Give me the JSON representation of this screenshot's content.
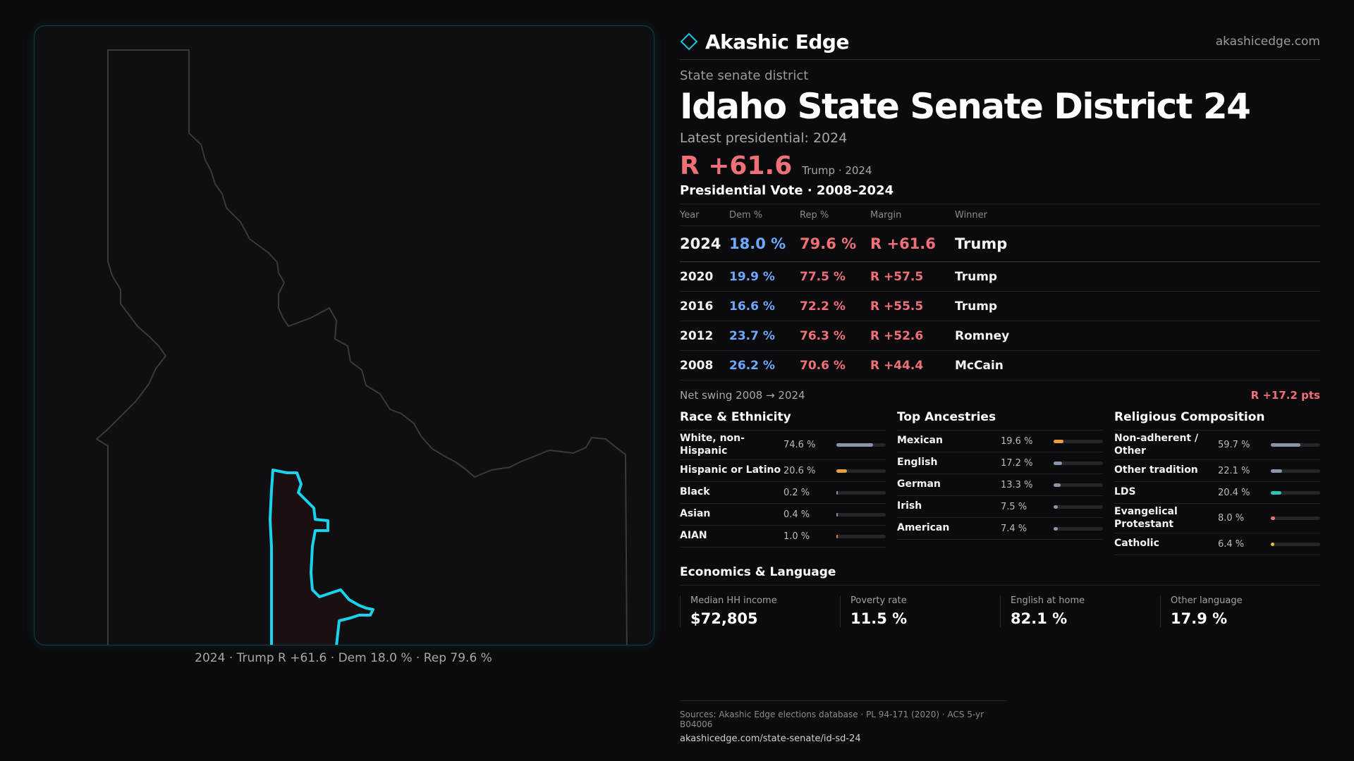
{
  "brand": {
    "name": "Akashic Edge",
    "url": "akashicedge.com",
    "logo_icon": "diamond-outline-icon"
  },
  "header": {
    "kicker": "State senate district",
    "title": "Idaho State Senate District 24",
    "latest_label": "Latest presidential: 2024",
    "margin": "R +61.6",
    "margin_note": "Trump · 2024"
  },
  "map": {
    "caption": "2024 · Trump R +61.6 · Dem 18.0 % · Rep 79.6 %",
    "accent": "#19d3ee"
  },
  "vote_table": {
    "title": "Presidential Vote · 2008–2024",
    "headers": {
      "year": "Year",
      "dem": "Dem %",
      "rep": "Rep %",
      "margin": "Margin",
      "winner": "Winner"
    },
    "rows": [
      {
        "year": "2024",
        "dem": "18.0 %",
        "rep": "79.6 %",
        "margin": "R +61.6",
        "winner": "Trump"
      },
      {
        "year": "2020",
        "dem": "19.9 %",
        "rep": "77.5 %",
        "margin": "R +57.5",
        "winner": "Trump"
      },
      {
        "year": "2016",
        "dem": "16.6 %",
        "rep": "72.2 %",
        "margin": "R +55.5",
        "winner": "Trump"
      },
      {
        "year": "2012",
        "dem": "23.7 %",
        "rep": "76.3 %",
        "margin": "R +52.6",
        "winner": "Romney"
      },
      {
        "year": "2008",
        "dem": "26.2 %",
        "rep": "70.6 %",
        "margin": "R +44.4",
        "winner": "McCain"
      }
    ],
    "swing_label": "Net swing 2008 → 2024",
    "swing_value": "R +17.2 pts"
  },
  "race": {
    "title": "Race & Ethnicity",
    "items": [
      {
        "label": "White, non-Hispanic",
        "pct": "74.6 %",
        "value": 74.6,
        "color": "#8a96a8"
      },
      {
        "label": "Hispanic or Latino",
        "pct": "20.6 %",
        "value": 20.6,
        "color": "#e8a13a"
      },
      {
        "label": "Black",
        "pct": "0.2 %",
        "value": 0.2,
        "color": "#8a96a8"
      },
      {
        "label": "Asian",
        "pct": "0.4 %",
        "value": 0.4,
        "color": "#8a96a8"
      },
      {
        "label": "AIAN",
        "pct": "1.0 %",
        "value": 1.0,
        "color": "#e0803a"
      }
    ]
  },
  "ancestry": {
    "title": "Top Ancestries",
    "items": [
      {
        "label": "Mexican",
        "pct": "19.6 %",
        "value": 19.6,
        "color": "#e8a13a"
      },
      {
        "label": "English",
        "pct": "17.2 %",
        "value": 17.2,
        "color": "#8a96a8"
      },
      {
        "label": "German",
        "pct": "13.3 %",
        "value": 13.3,
        "color": "#8a96a8"
      },
      {
        "label": "Irish",
        "pct": "7.5 %",
        "value": 7.5,
        "color": "#8a96a8"
      },
      {
        "label": "American",
        "pct": "7.4 %",
        "value": 7.4,
        "color": "#8a96a8"
      }
    ]
  },
  "religion": {
    "title": "Religious Composition",
    "items": [
      {
        "label": "Non-adherent / Other",
        "pct": "59.7 %",
        "value": 59.7,
        "color": "#8a96a8"
      },
      {
        "label": "Other tradition",
        "pct": "22.1 %",
        "value": 22.1,
        "color": "#8a96a8"
      },
      {
        "label": "LDS",
        "pct": "20.4 %",
        "value": 20.4,
        "color": "#2ec4b0"
      },
      {
        "label": "Evangelical Protestant",
        "pct": "8.0 %",
        "value": 8.0,
        "color": "#f07078"
      },
      {
        "label": "Catholic",
        "pct": "6.4 %",
        "value": 6.4,
        "color": "#e8c03a"
      }
    ]
  },
  "economics": {
    "title": "Economics & Language",
    "items": [
      {
        "label": "Median HH income",
        "value": "$72,805"
      },
      {
        "label": "Poverty rate",
        "value": "11.5 %"
      },
      {
        "label": "English at home",
        "value": "82.1 %"
      },
      {
        "label": "Other language",
        "value": "17.9 %"
      }
    ]
  },
  "sources": {
    "line1": "Sources: Akashic Edge elections database · PL 94-171 (2020) · ACS 5-yr B04006",
    "line2": "akashicedge.com/state-senate/id-sd-24"
  }
}
